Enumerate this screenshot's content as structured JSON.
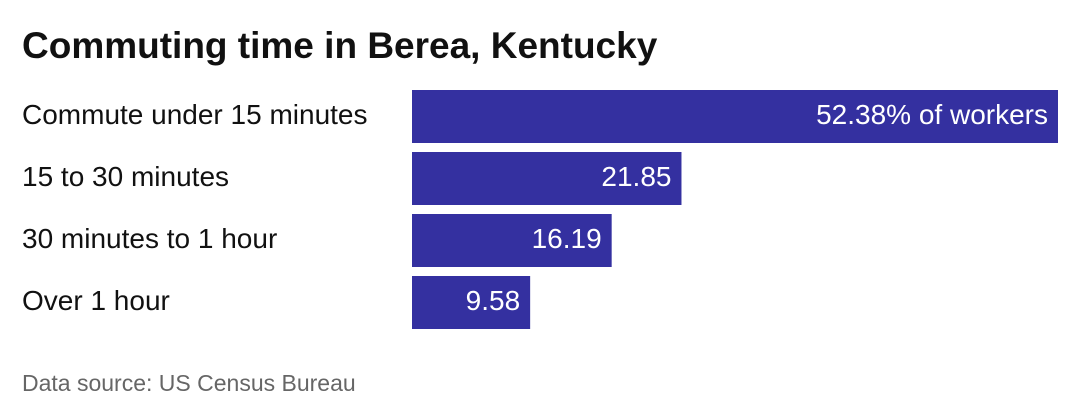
{
  "chart_data": {
    "type": "bar",
    "orientation": "horizontal",
    "title": "Commuting time in Berea, Kentucky",
    "categories": [
      "Commute under 15 minutes",
      "15 to 30 minutes",
      "30 minutes to 1 hour",
      "Over 1 hour"
    ],
    "values": [
      52.38,
      21.85,
      16.19,
      9.58
    ],
    "value_labels": [
      "52.38% of workers",
      "21.85",
      "16.19",
      "9.58"
    ],
    "color": "#3430a0",
    "source": "Data source: US Census Bureau"
  }
}
